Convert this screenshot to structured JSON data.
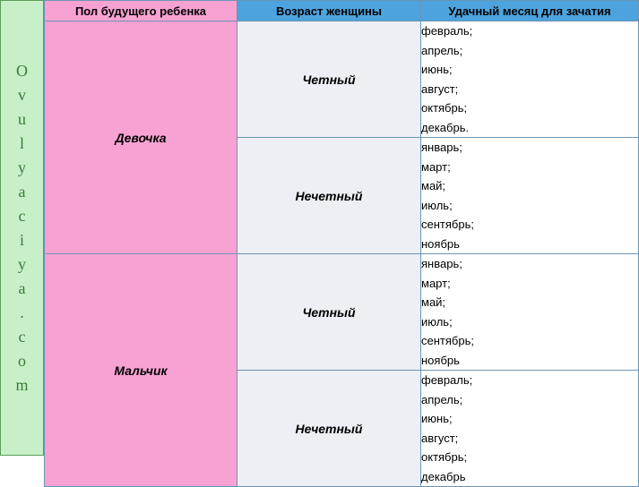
{
  "brand_letters": [
    "O",
    "v",
    "u",
    "l",
    "y",
    "a",
    "c",
    "i",
    "y",
    "a",
    ".",
    "c",
    "o",
    "m"
  ],
  "headers": {
    "sex": "Пол будущего ребенка",
    "age": "Возраст женщины",
    "month": "Удачный месяц для зачатия"
  },
  "col_widths": {
    "sex": 215,
    "age": 205,
    "month": 243
  },
  "colors": {
    "brand_bg": "#c8f0c8",
    "brand_text": "#3a7a3a",
    "header_sex_bg": "#f7a2d3",
    "header_other_bg": "#4da3dd",
    "cell_sex_bg": "#f7a2d3",
    "cell_age_bg": "#ecf0f4",
    "cell_month_bg": "#ffffff",
    "border": "#6a95b5"
  },
  "rows": [
    {
      "sex": "Девочка",
      "groups": [
        {
          "age": "Четный",
          "months": [
            "февраль;",
            "апрель;",
            "июнь;",
            "август;",
            "октябрь;",
            "декабрь."
          ]
        },
        {
          "age": "Нечетный",
          "months": [
            "январь;",
            "март;",
            "май;",
            "июль;",
            "сентябрь;",
            "ноябрь"
          ]
        }
      ]
    },
    {
      "sex": "Мальчик",
      "groups": [
        {
          "age": "Четный",
          "months": [
            "январь;",
            "март;",
            "май;",
            "июль;",
            "сентябрь;",
            "ноябрь"
          ]
        },
        {
          "age": "Нечетный",
          "months": [
            "февраль;",
            "апрель;",
            "июнь;",
            "август;",
            "октябрь;",
            "декабрь"
          ]
        }
      ]
    }
  ]
}
